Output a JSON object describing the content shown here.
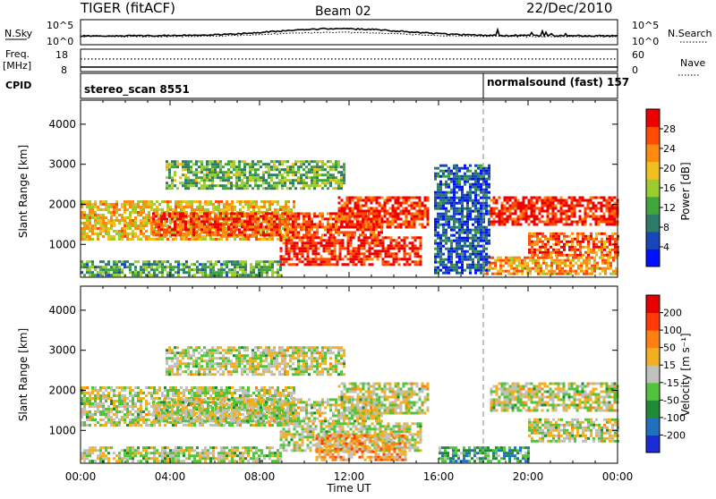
{
  "header": {
    "station": "TIGER (fitACF)",
    "beam": "Beam 02",
    "date": "22/Dec/2010"
  },
  "status_panels": {
    "nsky": {
      "label": "N.Sky",
      "y_ticks": [
        "10^5",
        "10^0"
      ],
      "right_ticks": [
        "10^5",
        "10^0"
      ],
      "right_label": "N.Search"
    },
    "freq": {
      "label_line1": "Freq.",
      "label_line2": "[MHz]",
      "y_ticks": [
        "18",
        "8"
      ],
      "right_ticks": [
        "60",
        "0"
      ],
      "right_label": "Nave"
    },
    "cpid": {
      "label": "CPID",
      "segments": [
        {
          "text": "stereo_scan 8551",
          "start_hour": 0
        },
        {
          "text": "normalsound (fast) 157",
          "start_hour": 18.0
        }
      ]
    }
  },
  "chart_data": [
    {
      "type": "heatmap",
      "panel": "power",
      "ylabel": "Slant Range [km]",
      "xlabel": "",
      "y_ticks": [
        1000,
        2000,
        3000,
        4000
      ],
      "ylim": [
        180,
        4600
      ],
      "x_ticks": [
        "00:00",
        "04:00",
        "08:00",
        "12:00",
        "16:00",
        "20:00",
        "00:00"
      ],
      "xlim_hours": [
        0,
        24
      ],
      "colorbar": {
        "label": "Power [dB]",
        "ticks": [
          "4",
          "8",
          "12",
          "16",
          "20",
          "24",
          "28"
        ],
        "colors": [
          "#0010ff",
          "#1646b8",
          "#2e7b6a",
          "#41a63a",
          "#9ccc2e",
          "#f0c020",
          "#ff8a10",
          "#ff4a05",
          "#ee0000"
        ]
      },
      "regions": [
        {
          "start_h": 0.0,
          "end_h": 9.5,
          "range_lo": 1100,
          "range_hi": 2100,
          "level": 0.62
        },
        {
          "start_h": 3.2,
          "end_h": 13.5,
          "range_lo": 1200,
          "range_hi": 1800,
          "level": 0.85
        },
        {
          "start_h": 8.9,
          "end_h": 15.2,
          "range_lo": 500,
          "range_hi": 1200,
          "level": 0.92
        },
        {
          "start_h": 11.5,
          "end_h": 15.5,
          "range_lo": 1400,
          "range_hi": 2200,
          "level": 0.88
        },
        {
          "start_h": 0.0,
          "end_h": 9.0,
          "range_lo": 200,
          "range_hi": 600,
          "level": 0.38
        },
        {
          "start_h": 3.8,
          "end_h": 11.8,
          "range_lo": 2400,
          "range_hi": 3100,
          "level": 0.42
        },
        {
          "start_h": 18.3,
          "end_h": 24.0,
          "range_lo": 1500,
          "range_hi": 2200,
          "level": 0.9
        },
        {
          "start_h": 20.0,
          "end_h": 24.0,
          "range_lo": 700,
          "range_hi": 1300,
          "level": 0.82
        },
        {
          "start_h": 18.0,
          "end_h": 24.0,
          "range_lo": 250,
          "range_hi": 700,
          "level": 0.7
        },
        {
          "start_h": 15.8,
          "end_h": 18.3,
          "range_lo": 300,
          "range_hi": 3000,
          "level": 0.2
        }
      ]
    },
    {
      "type": "heatmap",
      "panel": "velocity",
      "ylabel": "Slant Range [km]",
      "xlabel": "Time UT",
      "y_ticks": [
        1000,
        2000,
        3000,
        4000
      ],
      "ylim": [
        180,
        4600
      ],
      "x_ticks": [
        "00:00",
        "04:00",
        "08:00",
        "12:00",
        "16:00",
        "20:00",
        "00:00"
      ],
      "xlim_hours": [
        0,
        24
      ],
      "colorbar": {
        "label": "Velocity [m s⁻¹]",
        "ticks": [
          "200",
          "100",
          "50",
          "15",
          "-15",
          "-50",
          "-100",
          "-200"
        ],
        "colors": [
          "#1a2bd6",
          "#2070c0",
          "#1f8a36",
          "#52c43c",
          "#c0c0bc",
          "#f2b020",
          "#ff8010",
          "#ff3a05",
          "#e60000"
        ]
      },
      "regions": [
        {
          "start_h": 0.0,
          "end_h": 9.5,
          "range_lo": 1100,
          "range_hi": 2100,
          "level": 0.5
        },
        {
          "start_h": 3.2,
          "end_h": 13.5,
          "range_lo": 1200,
          "range_hi": 1800,
          "level": 0.5
        },
        {
          "start_h": 8.9,
          "end_h": 15.2,
          "range_lo": 500,
          "range_hi": 1200,
          "level": 0.5
        },
        {
          "start_h": 11.5,
          "end_h": 15.5,
          "range_lo": 1400,
          "range_hi": 2200,
          "level": 0.5
        },
        {
          "start_h": 10.5,
          "end_h": 14.5,
          "range_lo": 250,
          "range_hi": 900,
          "level": 0.66
        },
        {
          "start_h": 0.0,
          "end_h": 9.0,
          "range_lo": 200,
          "range_hi": 600,
          "level": 0.48
        },
        {
          "start_h": 3.8,
          "end_h": 11.8,
          "range_lo": 2400,
          "range_hi": 3100,
          "level": 0.5
        },
        {
          "start_h": 18.3,
          "end_h": 24.0,
          "range_lo": 1500,
          "range_hi": 2200,
          "level": 0.5
        },
        {
          "start_h": 20.0,
          "end_h": 24.0,
          "range_lo": 700,
          "range_hi": 1300,
          "level": 0.5
        },
        {
          "start_h": 16.0,
          "end_h": 20.0,
          "range_lo": 250,
          "range_hi": 600,
          "level": 0.3
        }
      ]
    }
  ]
}
